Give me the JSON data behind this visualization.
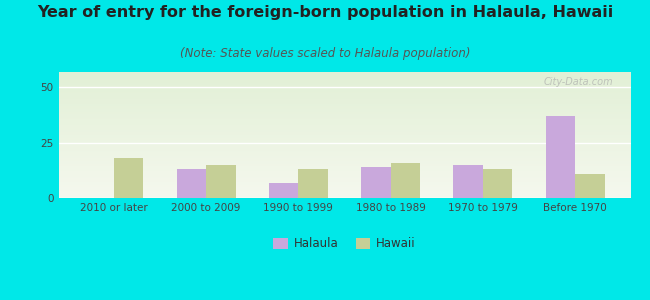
{
  "title": "Year of entry for the foreign-born population in Halaula, Hawaii",
  "subtitle": "(Note: State values scaled to Halaula population)",
  "categories": [
    "2010 or later",
    "2000 to 2009",
    "1990 to 1999",
    "1980 to 1989",
    "1970 to 1979",
    "Before 1970"
  ],
  "halaula_values": [
    0,
    13,
    7,
    14,
    15,
    37
  ],
  "hawaii_values": [
    18,
    15,
    13,
    16,
    13,
    11
  ],
  "halaula_color": "#c9a8dc",
  "hawaii_color": "#c5cf96",
  "background_color": "#00e8e8",
  "ylim": [
    0,
    57
  ],
  "yticks": [
    0,
    25,
    50
  ],
  "bar_width": 0.32,
  "legend_labels": [
    "Halaula",
    "Hawaii"
  ],
  "title_fontsize": 11.5,
  "subtitle_fontsize": 8.5,
  "tick_fontsize": 7.5,
  "watermark": "City-Data.com",
  "grad_top": "#e2f0d6",
  "grad_bottom": "#f5f8ee"
}
